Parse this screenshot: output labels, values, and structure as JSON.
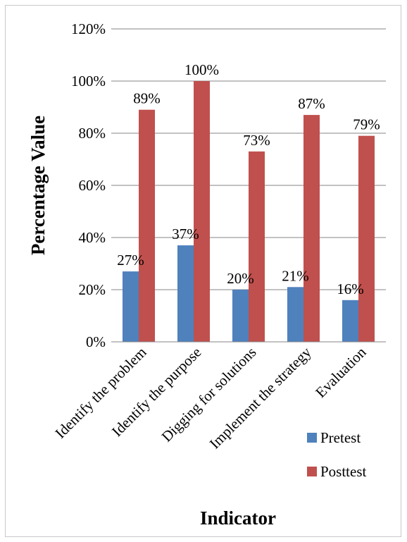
{
  "chart_data": {
    "type": "bar",
    "title": "",
    "xlabel": "Indicator",
    "ylabel": "Percentage Value",
    "categories": [
      "Identify the problem",
      "Identify the purpose",
      "Digging for solutions",
      "Implement the strategy",
      "Evaluation"
    ],
    "series": [
      {
        "name": "Pretest",
        "values": [
          27,
          37,
          20,
          21,
          16
        ],
        "labels": [
          "27%",
          "37%",
          "20%",
          "21%",
          "16%"
        ],
        "color": "#4f81bd"
      },
      {
        "name": "Posttest",
        "values": [
          89,
          100,
          73,
          87,
          79
        ],
        "labels": [
          "89%",
          "100%",
          "73%",
          "87%",
          "79%"
        ],
        "color": "#c0504d"
      }
    ],
    "ylim": [
      0,
      120
    ],
    "yticks": [
      "0%",
      "20%",
      "40%",
      "60%",
      "80%",
      "100%",
      "120%"
    ],
    "grid": true,
    "legend": "right"
  }
}
